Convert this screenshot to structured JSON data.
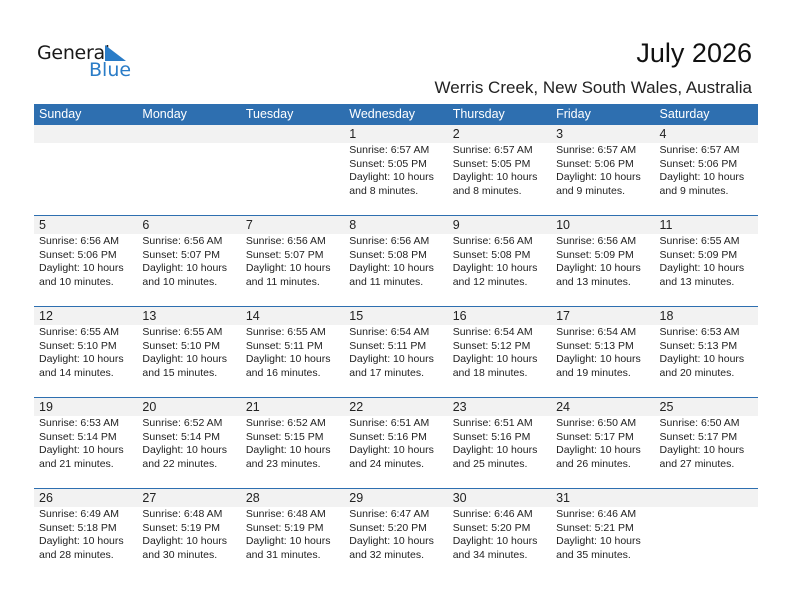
{
  "logo": {
    "text1": "General",
    "text2": "Blue"
  },
  "header": {
    "title": "July 2026",
    "location": "Werris Creek, New South Wales, Australia"
  },
  "colors": {
    "accent": "#2e6fb0",
    "date_row_bg": "#f2f2f2"
  },
  "weekdays": [
    "Sunday",
    "Monday",
    "Tuesday",
    "Wednesday",
    "Thursday",
    "Friday",
    "Saturday"
  ],
  "weeks": [
    [
      null,
      null,
      null,
      {
        "d": "1",
        "sr": "Sunrise: 6:57 AM",
        "ss": "Sunset: 5:05 PM",
        "dl": "Daylight: 10 hours",
        "m": "and 8 minutes."
      },
      {
        "d": "2",
        "sr": "Sunrise: 6:57 AM",
        "ss": "Sunset: 5:05 PM",
        "dl": "Daylight: 10 hours",
        "m": "and 8 minutes."
      },
      {
        "d": "3",
        "sr": "Sunrise: 6:57 AM",
        "ss": "Sunset: 5:06 PM",
        "dl": "Daylight: 10 hours",
        "m": "and 9 minutes."
      },
      {
        "d": "4",
        "sr": "Sunrise: 6:57 AM",
        "ss": "Sunset: 5:06 PM",
        "dl": "Daylight: 10 hours",
        "m": "and 9 minutes."
      }
    ],
    [
      {
        "d": "5",
        "sr": "Sunrise: 6:56 AM",
        "ss": "Sunset: 5:06 PM",
        "dl": "Daylight: 10 hours",
        "m": "and 10 minutes."
      },
      {
        "d": "6",
        "sr": "Sunrise: 6:56 AM",
        "ss": "Sunset: 5:07 PM",
        "dl": "Daylight: 10 hours",
        "m": "and 10 minutes."
      },
      {
        "d": "7",
        "sr": "Sunrise: 6:56 AM",
        "ss": "Sunset: 5:07 PM",
        "dl": "Daylight: 10 hours",
        "m": "and 11 minutes."
      },
      {
        "d": "8",
        "sr": "Sunrise: 6:56 AM",
        "ss": "Sunset: 5:08 PM",
        "dl": "Daylight: 10 hours",
        "m": "and 11 minutes."
      },
      {
        "d": "9",
        "sr": "Sunrise: 6:56 AM",
        "ss": "Sunset: 5:08 PM",
        "dl": "Daylight: 10 hours",
        "m": "and 12 minutes."
      },
      {
        "d": "10",
        "sr": "Sunrise: 6:56 AM",
        "ss": "Sunset: 5:09 PM",
        "dl": "Daylight: 10 hours",
        "m": "and 13 minutes."
      },
      {
        "d": "11",
        "sr": "Sunrise: 6:55 AM",
        "ss": "Sunset: 5:09 PM",
        "dl": "Daylight: 10 hours",
        "m": "and 13 minutes."
      }
    ],
    [
      {
        "d": "12",
        "sr": "Sunrise: 6:55 AM",
        "ss": "Sunset: 5:10 PM",
        "dl": "Daylight: 10 hours",
        "m": "and 14 minutes."
      },
      {
        "d": "13",
        "sr": "Sunrise: 6:55 AM",
        "ss": "Sunset: 5:10 PM",
        "dl": "Daylight: 10 hours",
        "m": "and 15 minutes."
      },
      {
        "d": "14",
        "sr": "Sunrise: 6:55 AM",
        "ss": "Sunset: 5:11 PM",
        "dl": "Daylight: 10 hours",
        "m": "and 16 minutes."
      },
      {
        "d": "15",
        "sr": "Sunrise: 6:54 AM",
        "ss": "Sunset: 5:11 PM",
        "dl": "Daylight: 10 hours",
        "m": "and 17 minutes."
      },
      {
        "d": "16",
        "sr": "Sunrise: 6:54 AM",
        "ss": "Sunset: 5:12 PM",
        "dl": "Daylight: 10 hours",
        "m": "and 18 minutes."
      },
      {
        "d": "17",
        "sr": "Sunrise: 6:54 AM",
        "ss": "Sunset: 5:13 PM",
        "dl": "Daylight: 10 hours",
        "m": "and 19 minutes."
      },
      {
        "d": "18",
        "sr": "Sunrise: 6:53 AM",
        "ss": "Sunset: 5:13 PM",
        "dl": "Daylight: 10 hours",
        "m": "and 20 minutes."
      }
    ],
    [
      {
        "d": "19",
        "sr": "Sunrise: 6:53 AM",
        "ss": "Sunset: 5:14 PM",
        "dl": "Daylight: 10 hours",
        "m": "and 21 minutes."
      },
      {
        "d": "20",
        "sr": "Sunrise: 6:52 AM",
        "ss": "Sunset: 5:14 PM",
        "dl": "Daylight: 10 hours",
        "m": "and 22 minutes."
      },
      {
        "d": "21",
        "sr": "Sunrise: 6:52 AM",
        "ss": "Sunset: 5:15 PM",
        "dl": "Daylight: 10 hours",
        "m": "and 23 minutes."
      },
      {
        "d": "22",
        "sr": "Sunrise: 6:51 AM",
        "ss": "Sunset: 5:16 PM",
        "dl": "Daylight: 10 hours",
        "m": "and 24 minutes."
      },
      {
        "d": "23",
        "sr": "Sunrise: 6:51 AM",
        "ss": "Sunset: 5:16 PM",
        "dl": "Daylight: 10 hours",
        "m": "and 25 minutes."
      },
      {
        "d": "24",
        "sr": "Sunrise: 6:50 AM",
        "ss": "Sunset: 5:17 PM",
        "dl": "Daylight: 10 hours",
        "m": "and 26 minutes."
      },
      {
        "d": "25",
        "sr": "Sunrise: 6:50 AM",
        "ss": "Sunset: 5:17 PM",
        "dl": "Daylight: 10 hours",
        "m": "and 27 minutes."
      }
    ],
    [
      {
        "d": "26",
        "sr": "Sunrise: 6:49 AM",
        "ss": "Sunset: 5:18 PM",
        "dl": "Daylight: 10 hours",
        "m": "and 28 minutes."
      },
      {
        "d": "27",
        "sr": "Sunrise: 6:48 AM",
        "ss": "Sunset: 5:19 PM",
        "dl": "Daylight: 10 hours",
        "m": "and 30 minutes."
      },
      {
        "d": "28",
        "sr": "Sunrise: 6:48 AM",
        "ss": "Sunset: 5:19 PM",
        "dl": "Daylight: 10 hours",
        "m": "and 31 minutes."
      },
      {
        "d": "29",
        "sr": "Sunrise: 6:47 AM",
        "ss": "Sunset: 5:20 PM",
        "dl": "Daylight: 10 hours",
        "m": "and 32 minutes."
      },
      {
        "d": "30",
        "sr": "Sunrise: 6:46 AM",
        "ss": "Sunset: 5:20 PM",
        "dl": "Daylight: 10 hours",
        "m": "and 34 minutes."
      },
      {
        "d": "31",
        "sr": "Sunrise: 6:46 AM",
        "ss": "Sunset: 5:21 PM",
        "dl": "Daylight: 10 hours",
        "m": "and 35 minutes."
      },
      null
    ]
  ]
}
